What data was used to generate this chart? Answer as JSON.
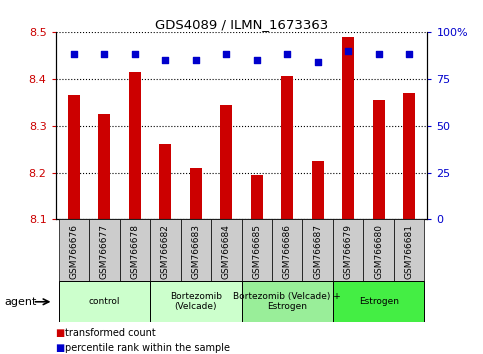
{
  "title": "GDS4089 / ILMN_1673363",
  "samples": [
    "GSM766676",
    "GSM766677",
    "GSM766678",
    "GSM766682",
    "GSM766683",
    "GSM766684",
    "GSM766685",
    "GSM766686",
    "GSM766687",
    "GSM766679",
    "GSM766680",
    "GSM766681"
  ],
  "bar_values": [
    8.365,
    8.325,
    8.415,
    8.26,
    8.21,
    8.345,
    8.195,
    8.405,
    8.225,
    8.49,
    8.355,
    8.37
  ],
  "percentile_values": [
    88,
    88,
    88,
    85,
    85,
    88,
    85,
    88,
    84,
    90,
    88,
    88
  ],
  "bar_color": "#cc0000",
  "percentile_color": "#0000cc",
  "ylim_left": [
    8.1,
    8.5
  ],
  "ylim_right": [
    0,
    100
  ],
  "yticks_left": [
    8.1,
    8.2,
    8.3,
    8.4,
    8.5
  ],
  "yticks_right": [
    0,
    25,
    50,
    75,
    100
  ],
  "ytick_labels_right": [
    "0",
    "25",
    "50",
    "75",
    "100%"
  ],
  "groups": [
    {
      "label": "control",
      "start": 0,
      "end": 3,
      "color": "#ccffcc"
    },
    {
      "label": "Bortezomib\n(Velcade)",
      "start": 3,
      "end": 6,
      "color": "#ccffcc"
    },
    {
      "label": "Bortezomib (Velcade) +\nEstrogen",
      "start": 6,
      "end": 9,
      "color": "#99ee99"
    },
    {
      "label": "Estrogen",
      "start": 9,
      "end": 12,
      "color": "#44ee44"
    }
  ],
  "agent_label": "agent",
  "legend_bar_label": "transformed count",
  "legend_dot_label": "percentile rank within the sample",
  "bar_bottom": 8.1,
  "background_color": "#ffffff",
  "tick_area_color": "#cccccc",
  "bar_width": 0.4
}
